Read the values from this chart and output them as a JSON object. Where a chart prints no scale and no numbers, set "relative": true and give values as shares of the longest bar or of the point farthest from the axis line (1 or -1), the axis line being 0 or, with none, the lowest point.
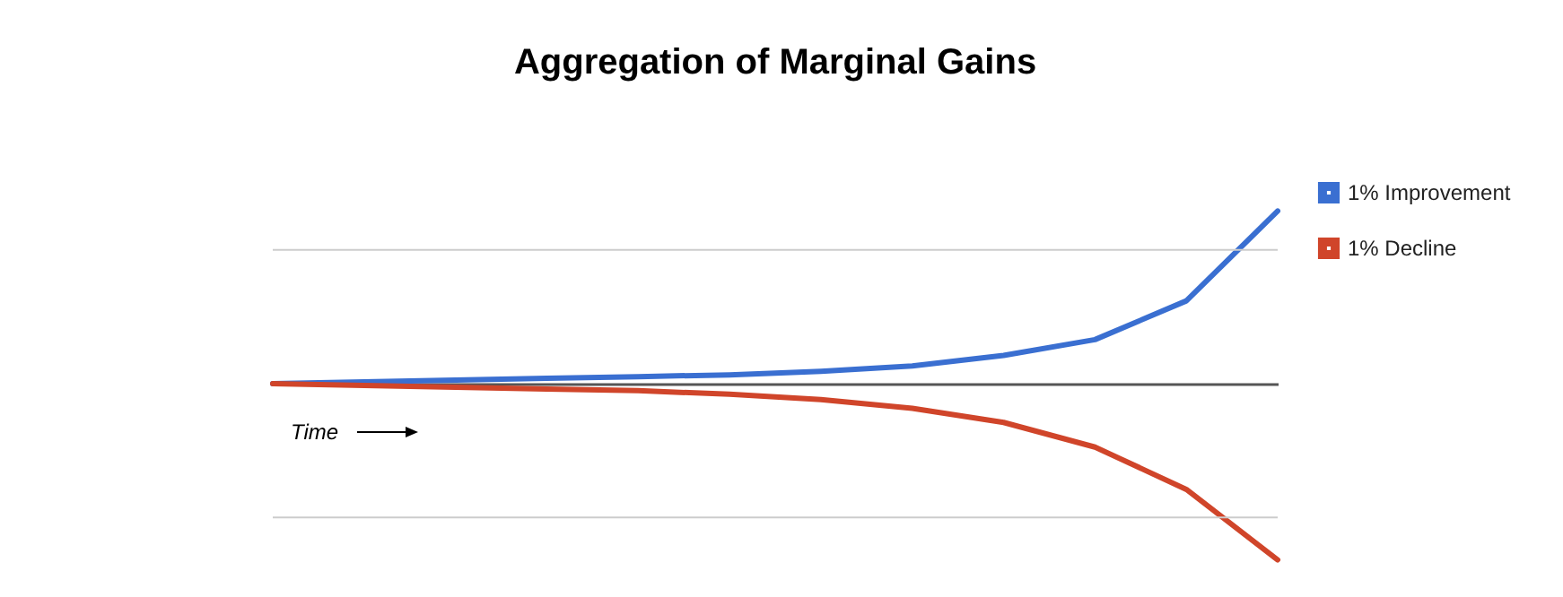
{
  "chart_data": {
    "type": "line",
    "title": "Aggregation of Marginal Gains",
    "relative": true,
    "categories": [
      null,
      null,
      null,
      null,
      null,
      null,
      null,
      null,
      null,
      null,
      null,
      null
    ],
    "series": [
      {
        "name": "1% Improvement",
        "color": "#3a6fd1",
        "values": [
          0,
          0.01,
          0.02,
          0.03,
          0.04,
          0.05,
          0.07,
          0.1,
          0.16,
          0.25,
          0.47,
          0.98
        ]
      },
      {
        "name": "1% Decline",
        "color": "#d0452a",
        "values": [
          0,
          -0.01,
          -0.02,
          -0.03,
          -0.04,
          -0.06,
          -0.09,
          -0.14,
          -0.22,
          -0.36,
          -0.6,
          -1
        ]
      }
    ],
    "ref_lines": [
      {
        "axis": "y",
        "value": 0.76,
        "color": "#cccccc"
      },
      {
        "axis": "y",
        "value": -0.76,
        "color": "#cccccc"
      }
    ],
    "annotations": [
      "Time"
    ],
    "legend": "right",
    "marker": "none"
  }
}
